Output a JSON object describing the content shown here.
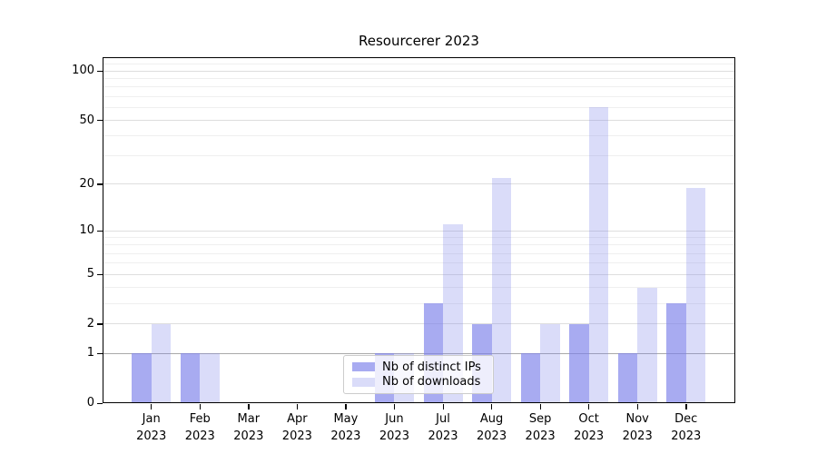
{
  "title": "Resourcerer 2023",
  "colors": {
    "bar_distinct_ips": "rgba(123,128,234,0.66)",
    "bar_downloads": "rgba(123,128,234,0.28)",
    "grid_major": "#dedede",
    "grid_minor": "#efefef",
    "grid_baseline_one": "#a9a9a9",
    "legend_border": "#cccccc"
  },
  "chart_data": {
    "type": "bar",
    "title": "Resourcerer 2023",
    "categories": [
      "Jan 2023",
      "Feb 2023",
      "Mar 2023",
      "Apr 2023",
      "May 2023",
      "Jun 2023",
      "Jul 2023",
      "Aug 2023",
      "Sep 2023",
      "Oct 2023",
      "Nov 2023",
      "Dec 2023"
    ],
    "series": [
      {
        "name": "Nb of distinct IPs",
        "color": "rgba(123,128,234,0.66)",
        "values": [
          1,
          1,
          0,
          0,
          0,
          1,
          3,
          2,
          1,
          2,
          1,
          3
        ]
      },
      {
        "name": "Nb of downloads",
        "color": "rgba(123,128,234,0.28)",
        "values": [
          2,
          1,
          0,
          0,
          0,
          1,
          11,
          22,
          2,
          60,
          4,
          19
        ]
      }
    ],
    "xlabel": "",
    "ylabel": "",
    "yscale": "log1p",
    "ylim": [
      0,
      130
    ],
    "yticks": [
      0,
      1,
      2,
      5,
      10,
      20,
      50,
      100
    ],
    "minor_yticks": [
      3,
      4,
      6,
      7,
      8,
      9,
      30,
      40,
      60,
      70,
      80,
      90,
      110
    ],
    "grid": true,
    "legend_position": "lower center"
  }
}
